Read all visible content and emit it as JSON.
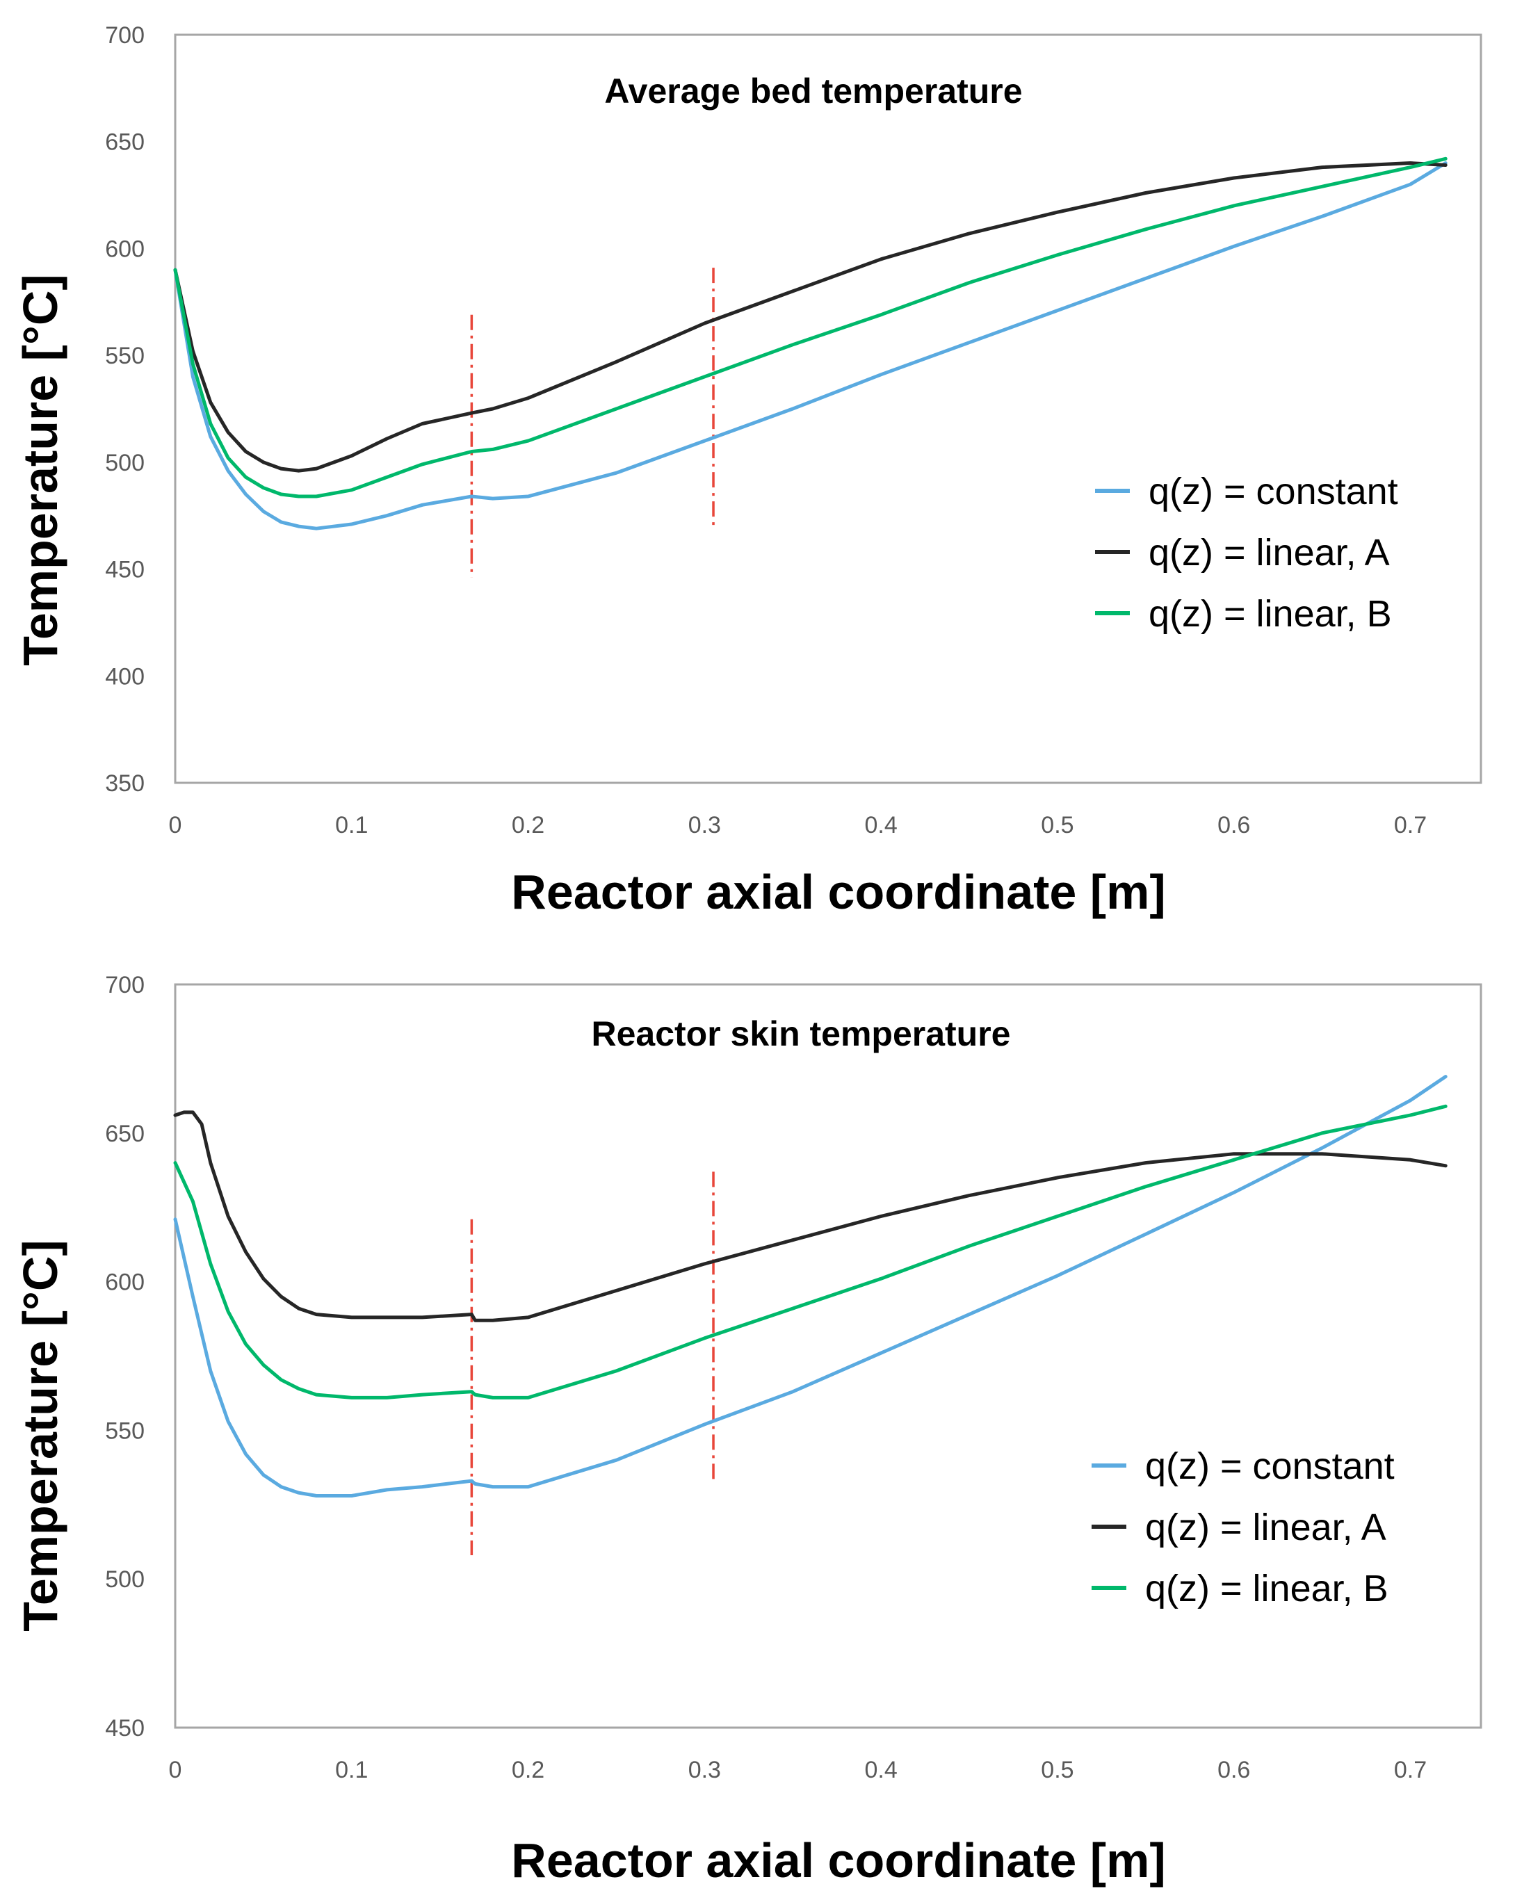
{
  "colors": {
    "constant": "#5aaae0",
    "linear_A": "#262626",
    "linear_B": "#00b86b",
    "marker": "#e8463a",
    "frame": "#a6a6a6"
  },
  "chart_data": [
    {
      "type": "line",
      "title": "Average bed temperature",
      "xlabel": "Reactor axial coordinate [m]",
      "ylabel": "Temperature [°C]",
      "xlim": [
        0,
        0.74
      ],
      "ylim": [
        350,
        700
      ],
      "xticks": [
        "0",
        "0.1",
        "0.2",
        "0.3",
        "0.4",
        "0.5",
        "0.6",
        "0.7"
      ],
      "xtick_values": [
        0,
        0.1,
        0.2,
        0.3,
        0.4,
        0.5,
        0.6,
        0.7
      ],
      "yticks": [
        "350",
        "400",
        "450",
        "500",
        "550",
        "600",
        "650",
        "700"
      ],
      "ytick_values": [
        350,
        400,
        450,
        500,
        550,
        600,
        650,
        700
      ],
      "legend": [
        "q(z) = constant",
        "q(z) = linear, A",
        "q(z) = linear, B"
      ],
      "legend_position": "right",
      "markers": [
        {
          "x": 0.168,
          "y0": 446,
          "y1": 569
        },
        {
          "x": 0.305,
          "y0": 470,
          "y1": 591
        }
      ],
      "series": [
        {
          "name": "q(z) = constant",
          "key": "constant",
          "x": [
            0,
            0.01,
            0.02,
            0.03,
            0.04,
            0.05,
            0.06,
            0.07,
            0.08,
            0.1,
            0.12,
            0.14,
            0.168,
            0.18,
            0.2,
            0.25,
            0.3,
            0.35,
            0.4,
            0.45,
            0.5,
            0.55,
            0.6,
            0.65,
            0.7,
            0.72
          ],
          "values": [
            590,
            540,
            512,
            496,
            485,
            477,
            472,
            470,
            469,
            471,
            475,
            480,
            484,
            483,
            484,
            495,
            510,
            525,
            541,
            556,
            571,
            586,
            601,
            615,
            630,
            640
          ]
        },
        {
          "name": "q(z) = linear, A",
          "key": "linear_A",
          "x": [
            0,
            0.01,
            0.02,
            0.03,
            0.04,
            0.05,
            0.06,
            0.07,
            0.08,
            0.1,
            0.12,
            0.14,
            0.168,
            0.18,
            0.2,
            0.25,
            0.3,
            0.35,
            0.4,
            0.45,
            0.5,
            0.55,
            0.6,
            0.65,
            0.7,
            0.72
          ],
          "values": [
            590,
            552,
            528,
            514,
            505,
            500,
            497,
            496,
            497,
            503,
            511,
            518,
            523,
            525,
            530,
            547,
            565,
            580,
            595,
            607,
            617,
            626,
            633,
            638,
            640,
            639
          ]
        },
        {
          "name": "q(z) = linear, B",
          "key": "linear_B",
          "x": [
            0,
            0.01,
            0.02,
            0.03,
            0.04,
            0.05,
            0.06,
            0.07,
            0.08,
            0.1,
            0.12,
            0.14,
            0.168,
            0.18,
            0.2,
            0.25,
            0.3,
            0.35,
            0.4,
            0.45,
            0.5,
            0.55,
            0.6,
            0.65,
            0.7,
            0.72
          ],
          "values": [
            590,
            546,
            518,
            502,
            493,
            488,
            485,
            484,
            484,
            487,
            493,
            499,
            505,
            506,
            510,
            525,
            540,
            555,
            569,
            584,
            597,
            609,
            620,
            629,
            638,
            642
          ]
        }
      ]
    },
    {
      "type": "line",
      "title": "Reactor skin temperature",
      "xlabel": "Reactor axial coordinate [m]",
      "ylabel": "Temperature [°C]",
      "xlim": [
        0,
        0.74
      ],
      "ylim": [
        450,
        700
      ],
      "xticks": [
        "0",
        "0.1",
        "0.2",
        "0.3",
        "0.4",
        "0.5",
        "0.6",
        "0.7"
      ],
      "xtick_values": [
        0,
        0.1,
        0.2,
        0.3,
        0.4,
        0.5,
        0.6,
        0.7
      ],
      "yticks": [
        "450",
        "500",
        "550",
        "600",
        "650",
        "700"
      ],
      "ytick_values": [
        450,
        500,
        550,
        600,
        650,
        700
      ],
      "legend": [
        "q(z) = constant",
        "q(z) = linear, A",
        "q(z) = linear, B"
      ],
      "legend_position": "bottom-right",
      "markers": [
        {
          "x": 0.168,
          "y0": 508,
          "y1": 621
        },
        {
          "x": 0.305,
          "y0": 533,
          "y1": 637
        }
      ],
      "series": [
        {
          "name": "q(z) = constant",
          "key": "constant",
          "x": [
            0,
            0.01,
            0.02,
            0.03,
            0.04,
            0.05,
            0.06,
            0.07,
            0.08,
            0.1,
            0.12,
            0.14,
            0.168,
            0.17,
            0.18,
            0.2,
            0.25,
            0.3,
            0.35,
            0.4,
            0.45,
            0.5,
            0.55,
            0.6,
            0.65,
            0.7,
            0.72
          ],
          "values": [
            621,
            595,
            570,
            553,
            542,
            535,
            531,
            529,
            528,
            528,
            530,
            531,
            533,
            532,
            531,
            531,
            540,
            552,
            563,
            576,
            589,
            602,
            616,
            630,
            645,
            661,
            669
          ]
        },
        {
          "name": "q(z) = linear, A",
          "key": "linear_A",
          "x": [
            0,
            0.005,
            0.01,
            0.015,
            0.02,
            0.03,
            0.04,
            0.05,
            0.06,
            0.07,
            0.08,
            0.1,
            0.12,
            0.14,
            0.168,
            0.17,
            0.175,
            0.18,
            0.2,
            0.25,
            0.3,
            0.35,
            0.4,
            0.45,
            0.5,
            0.55,
            0.6,
            0.65,
            0.7,
            0.72
          ],
          "values": [
            656,
            657,
            657,
            653,
            640,
            622,
            610,
            601,
            595,
            591,
            589,
            588,
            588,
            588,
            589,
            587,
            587,
            587,
            588,
            597,
            606,
            614,
            622,
            629,
            635,
            640,
            643,
            643,
            641,
            639
          ]
        },
        {
          "name": "q(z) = linear, B",
          "key": "linear_B",
          "x": [
            0,
            0.01,
            0.02,
            0.03,
            0.04,
            0.05,
            0.06,
            0.07,
            0.08,
            0.1,
            0.12,
            0.14,
            0.168,
            0.17,
            0.18,
            0.2,
            0.25,
            0.3,
            0.35,
            0.4,
            0.45,
            0.5,
            0.55,
            0.6,
            0.65,
            0.7,
            0.72
          ],
          "values": [
            640,
            627,
            606,
            590,
            579,
            572,
            567,
            564,
            562,
            561,
            561,
            562,
            563,
            562,
            561,
            561,
            570,
            581,
            591,
            601,
            612,
            622,
            632,
            641,
            650,
            656,
            659
          ]
        }
      ]
    }
  ]
}
